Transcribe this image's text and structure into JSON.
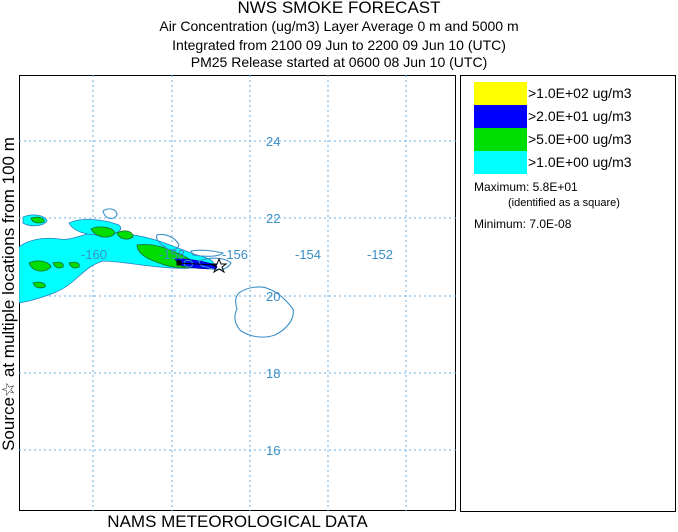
{
  "header": {
    "title": "NWS SMOKE FORECAST",
    "line2": "Air Concentration (ug/m3) Layer Average    0 m and  5000 m",
    "line3": "Integrated from 2100 09 Jun to 2200 09 Jun 10 (UTC)",
    "line4": "PM25 Release started at 0600 08 Jun 10 (UTC)"
  },
  "map": {
    "side_label": "Source☆ at multiple locations    from   100 m",
    "bottom_label": "NAMS METEOROLOGICAL DATA",
    "lat_labels": [
      "24",
      "22",
      "20",
      "18",
      "16"
    ],
    "lon_labels": [
      "-160",
      "-158",
      "-156",
      "-154",
      "-152"
    ]
  },
  "legend": {
    "items": [
      {
        "color": "#ffff00",
        "label": ">1.0E+02 ug/m3"
      },
      {
        "color": "#0000ff",
        "label": ">2.0E+01 ug/m3"
      },
      {
        "color": "#00dd00",
        "label": ">5.0E+00 ug/m3"
      },
      {
        "color": "#00ffff",
        "label": ">1.0E+00 ug/m3"
      }
    ],
    "maximum": "Maximum: 5.8E+01",
    "maximum_note": "(identified as a square)",
    "minimum": "Minimum: 7.0E-08"
  }
}
